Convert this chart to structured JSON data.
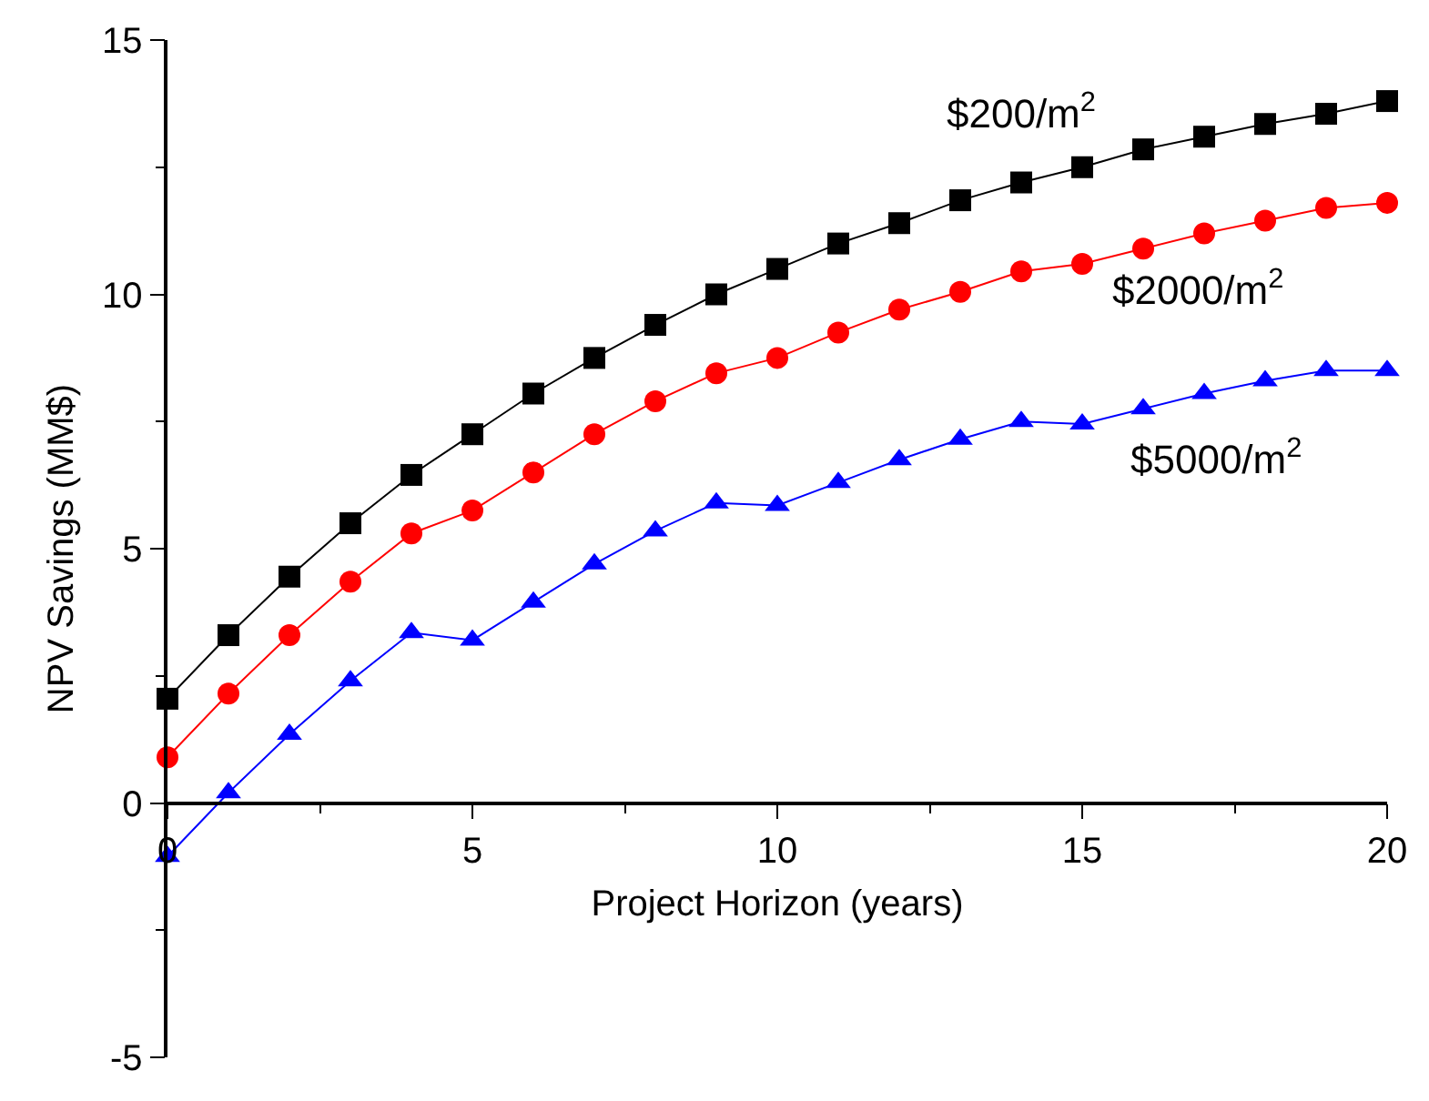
{
  "chart_data": {
    "type": "line",
    "xlabel": "Project Horizon (years)",
    "ylabel": "NPV Savings (MM$)",
    "x": [
      0,
      1,
      2,
      3,
      4,
      5,
      6,
      7,
      8,
      9,
      10,
      11,
      12,
      13,
      14,
      15,
      16,
      17,
      18,
      19,
      20
    ],
    "series": [
      {
        "color": "#000000",
        "marker": "square",
        "values": [
          2.05,
          3.3,
          4.45,
          5.5,
          6.45,
          7.25,
          8.05,
          8.75,
          9.4,
          10.0,
          10.5,
          11.0,
          11.4,
          11.85,
          12.2,
          12.5,
          12.85,
          13.1,
          13.35,
          13.55,
          13.8
        ]
      },
      {
        "color": "#ff0000",
        "marker": "circle",
        "values": [
          0.9,
          2.15,
          3.3,
          4.35,
          5.3,
          5.75,
          6.5,
          7.25,
          7.9,
          8.45,
          8.75,
          9.25,
          9.7,
          10.05,
          10.45,
          10.6,
          10.9,
          11.2,
          11.45,
          11.7,
          11.8
        ]
      },
      {
        "color": "#0000ff",
        "marker": "triangle",
        "values": [
          -1.05,
          0.2,
          1.35,
          2.4,
          3.35,
          3.2,
          3.95,
          4.7,
          5.35,
          5.9,
          5.85,
          6.3,
          6.75,
          7.15,
          7.5,
          7.45,
          7.75,
          8.05,
          8.3,
          8.5,
          8.5
        ]
      }
    ],
    "annotations": [
      "$200/m$^{2}$",
      "$2000/m$^{2}$",
      "$5000/m$^{2}$"
    ],
    "xlim": [
      0,
      20
    ],
    "xticks": [
      0,
      5,
      10,
      15,
      20
    ],
    "ylim": [
      -5,
      15
    ],
    "yticks": [
      -5,
      0,
      5,
      10,
      15
    ],
    "line_style": "solid"
  }
}
